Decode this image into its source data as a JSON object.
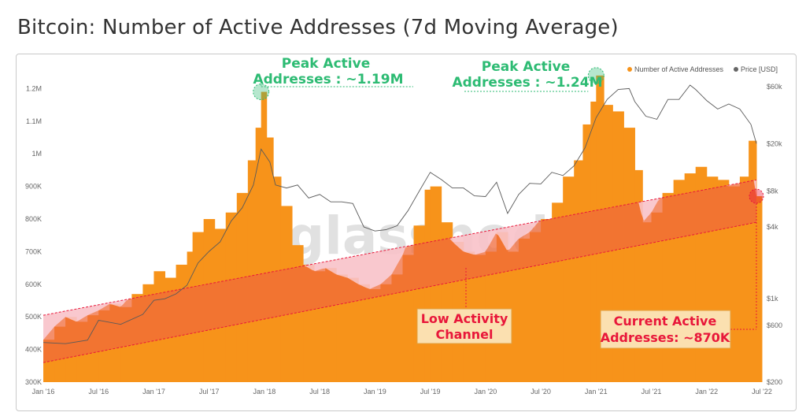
{
  "title": "Bitcoin: Number of Active Addresses (7d Moving Average)",
  "watermark": "glassnode",
  "colors": {
    "bars": "#f7931a",
    "price": "#5a5a5a",
    "channel_fill": "#f06a3a",
    "above_channel": "#f8c2c9",
    "peak_marker": "#2dbb73",
    "current_marker": "#e8173a",
    "label_box": "#fbe0b0"
  },
  "legend": [
    {
      "label": "Number of Active Addresses",
      "color": "#f7931a"
    },
    {
      "label": "Price [USD]",
      "color": "#666666"
    }
  ],
  "annotations": {
    "peak1": {
      "line1": "Peak Active",
      "line2": "Addresses : ~1.19M"
    },
    "peak2": {
      "line1": "Peak Active",
      "line2": "Addresses : ~1.24M"
    },
    "channel": {
      "line1": "Low Activity",
      "line2": "Channel"
    },
    "current": {
      "line1": "Current Active",
      "line2": "Addresses: ~870K"
    }
  },
  "chart_data": {
    "type": "bar",
    "title": "Bitcoin: Number of Active Addresses (7d Moving Average)",
    "x_ticks": [
      "Jan '16",
      "Jul '16",
      "Jan '17",
      "Jul '17",
      "Jan '18",
      "Jul '18",
      "Jan '19",
      "Jul '19",
      "Jan '20",
      "Jul '20",
      "Jan '21",
      "Jul '21",
      "Jan '22",
      "Jul '22"
    ],
    "y_left_ticks": [
      {
        "value": 300000,
        "label": "300K"
      },
      {
        "value": 400000,
        "label": "400K"
      },
      {
        "value": 500000,
        "label": "500K"
      },
      {
        "value": 600000,
        "label": "600K"
      },
      {
        "value": 700000,
        "label": "700K"
      },
      {
        "value": 800000,
        "label": "800K"
      },
      {
        "value": 900000,
        "label": "900K"
      },
      {
        "value": 1000000,
        "label": "1M"
      },
      {
        "value": 1100000,
        "label": "1.1M"
      },
      {
        "value": 1200000,
        "label": "1.2M"
      }
    ],
    "y_left_range": [
      300000,
      1230000
    ],
    "y_right_ticks": [
      {
        "value": 200,
        "label": "$200"
      },
      {
        "value": 600,
        "label": "$600"
      },
      {
        "value": 1000,
        "label": "$1k"
      },
      {
        "value": 4000,
        "label": "$4k"
      },
      {
        "value": 8000,
        "label": "$8k"
      },
      {
        "value": 20000,
        "label": "$20k"
      },
      {
        "value": 60000,
        "label": "$60k"
      }
    ],
    "y_right_scale": "log",
    "y_right_range": [
      200,
      70000
    ],
    "legend_position": "top-right",
    "x_range": [
      2016.0,
      2022.5
    ],
    "series": [
      {
        "name": "Number of Active Addresses",
        "unit": "addresses",
        "points": [
          [
            2016.0,
            430000
          ],
          [
            2016.1,
            470000
          ],
          [
            2016.2,
            500000
          ],
          [
            2016.3,
            485000
          ],
          [
            2016.4,
            505000
          ],
          [
            2016.5,
            520000
          ],
          [
            2016.6,
            540000
          ],
          [
            2016.7,
            530000
          ],
          [
            2016.8,
            570000
          ],
          [
            2016.9,
            600000
          ],
          [
            2017.0,
            640000
          ],
          [
            2017.1,
            620000
          ],
          [
            2017.2,
            660000
          ],
          [
            2017.3,
            700000
          ],
          [
            2017.35,
            760000
          ],
          [
            2017.45,
            800000
          ],
          [
            2017.55,
            770000
          ],
          [
            2017.65,
            820000
          ],
          [
            2017.75,
            880000
          ],
          [
            2017.85,
            980000
          ],
          [
            2017.92,
            1080000
          ],
          [
            2017.97,
            1190000
          ],
          [
            2018.02,
            1050000
          ],
          [
            2018.08,
            930000
          ],
          [
            2018.15,
            840000
          ],
          [
            2018.25,
            720000
          ],
          [
            2018.35,
            660000
          ],
          [
            2018.45,
            640000
          ],
          [
            2018.55,
            650000
          ],
          [
            2018.65,
            630000
          ],
          [
            2018.75,
            620000
          ],
          [
            2018.85,
            600000
          ],
          [
            2018.95,
            585000
          ],
          [
            2019.05,
            600000
          ],
          [
            2019.15,
            630000
          ],
          [
            2019.25,
            690000
          ],
          [
            2019.35,
            780000
          ],
          [
            2019.45,
            890000
          ],
          [
            2019.5,
            900000
          ],
          [
            2019.6,
            790000
          ],
          [
            2019.7,
            730000
          ],
          [
            2019.8,
            700000
          ],
          [
            2019.9,
            690000
          ],
          [
            2020.0,
            700000
          ],
          [
            2020.1,
            760000
          ],
          [
            2020.2,
            700000
          ],
          [
            2020.3,
            740000
          ],
          [
            2020.4,
            760000
          ],
          [
            2020.5,
            800000
          ],
          [
            2020.6,
            850000
          ],
          [
            2020.7,
            930000
          ],
          [
            2020.8,
            980000
          ],
          [
            2020.88,
            1090000
          ],
          [
            2020.95,
            1160000
          ],
          [
            2021.0,
            1240000
          ],
          [
            2021.07,
            1150000
          ],
          [
            2021.15,
            1130000
          ],
          [
            2021.25,
            1080000
          ],
          [
            2021.35,
            950000
          ],
          [
            2021.42,
            790000
          ],
          [
            2021.5,
            820000
          ],
          [
            2021.6,
            880000
          ],
          [
            2021.7,
            920000
          ],
          [
            2021.8,
            940000
          ],
          [
            2021.9,
            960000
          ],
          [
            2022.0,
            930000
          ],
          [
            2022.1,
            920000
          ],
          [
            2022.2,
            900000
          ],
          [
            2022.3,
            930000
          ],
          [
            2022.38,
            1040000
          ],
          [
            2022.45,
            870000
          ]
        ]
      },
      {
        "name": "Price [USD]",
        "unit": "USD",
        "points": [
          [
            2016.0,
            430
          ],
          [
            2016.2,
            420
          ],
          [
            2016.4,
            450
          ],
          [
            2016.5,
            660
          ],
          [
            2016.7,
            610
          ],
          [
            2016.9,
            740
          ],
          [
            2017.0,
            970
          ],
          [
            2017.1,
            1000
          ],
          [
            2017.2,
            1100
          ],
          [
            2017.3,
            1300
          ],
          [
            2017.4,
            2000
          ],
          [
            2017.5,
            2500
          ],
          [
            2017.6,
            3000
          ],
          [
            2017.7,
            4500
          ],
          [
            2017.8,
            5800
          ],
          [
            2017.9,
            9000
          ],
          [
            2017.97,
            18000
          ],
          [
            2018.05,
            14000
          ],
          [
            2018.1,
            9000
          ],
          [
            2018.2,
            8500
          ],
          [
            2018.3,
            9000
          ],
          [
            2018.4,
            7000
          ],
          [
            2018.5,
            7500
          ],
          [
            2018.6,
            6500
          ],
          [
            2018.7,
            6500
          ],
          [
            2018.8,
            6300
          ],
          [
            2018.9,
            4000
          ],
          [
            2019.0,
            3700
          ],
          [
            2019.1,
            3800
          ],
          [
            2019.2,
            4100
          ],
          [
            2019.3,
            5500
          ],
          [
            2019.4,
            8000
          ],
          [
            2019.5,
            11500
          ],
          [
            2019.6,
            10000
          ],
          [
            2019.7,
            8500
          ],
          [
            2019.8,
            8500
          ],
          [
            2019.9,
            7300
          ],
          [
            2020.0,
            7200
          ],
          [
            2020.1,
            9500
          ],
          [
            2020.2,
            5200
          ],
          [
            2020.3,
            7500
          ],
          [
            2020.4,
            9300
          ],
          [
            2020.5,
            9200
          ],
          [
            2020.6,
            11500
          ],
          [
            2020.7,
            10800
          ],
          [
            2020.8,
            13000
          ],
          [
            2020.9,
            18500
          ],
          [
            2021.0,
            33000
          ],
          [
            2021.1,
            47000
          ],
          [
            2021.2,
            57000
          ],
          [
            2021.3,
            58000
          ],
          [
            2021.35,
            45000
          ],
          [
            2021.45,
            34000
          ],
          [
            2021.55,
            32000
          ],
          [
            2021.65,
            47000
          ],
          [
            2021.75,
            47000
          ],
          [
            2021.85,
            62000
          ],
          [
            2021.9,
            57000
          ],
          [
            2022.0,
            46000
          ],
          [
            2022.1,
            39000
          ],
          [
            2022.2,
            43000
          ],
          [
            2022.3,
            39000
          ],
          [
            2022.4,
            29000
          ],
          [
            2022.45,
            20000
          ]
        ]
      }
    ],
    "channel": {
      "upper": [
        [
          2016.0,
          505000
        ],
        [
          2022.45,
          920000
        ]
      ],
      "lower": [
        [
          2016.0,
          360000
        ],
        [
          2022.45,
          790000
        ]
      ]
    },
    "markers": [
      {
        "label": "Peak Active Addresses : ~1.19M",
        "x": 2017.97,
        "y": 1190000
      },
      {
        "label": "Peak Active Addresses : ~1.24M",
        "x": 2021.0,
        "y": 1240000
      },
      {
        "label": "Current Active Addresses: ~870K",
        "x": 2022.45,
        "y": 870000
      }
    ]
  }
}
